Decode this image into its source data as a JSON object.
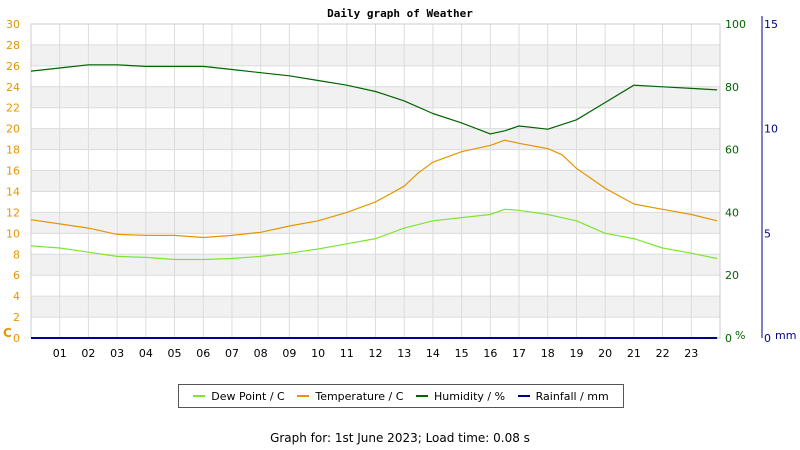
{
  "chart_data": {
    "type": "line",
    "title": "Daily graph of Weather",
    "x_ticks": [
      "01",
      "02",
      "03",
      "04",
      "05",
      "06",
      "07",
      "08",
      "09",
      "10",
      "11",
      "12",
      "13",
      "14",
      "15",
      "16",
      "17",
      "18",
      "19",
      "20",
      "21",
      "22",
      "23"
    ],
    "xlim": [
      0,
      24
    ],
    "left_axis": {
      "unit": "C",
      "range": [
        0,
        30
      ],
      "ticks": [
        "0",
        "2",
        "4",
        "6",
        "8",
        "10",
        "12",
        "14",
        "16",
        "18",
        "20",
        "22",
        "24",
        "26",
        "28",
        "30"
      ],
      "color": "#e69500"
    },
    "right_axis_1": {
      "unit": "%",
      "range": [
        0,
        100
      ],
      "ticks": [
        "0",
        "20",
        "40",
        "60",
        "80",
        "100"
      ],
      "color": "#006400"
    },
    "right_axis_2": {
      "unit": "mm",
      "range": [
        0,
        15
      ],
      "ticks": [
        "0",
        "5",
        "10",
        "15"
      ],
      "color": "#00008b"
    },
    "series": [
      {
        "name": "Dew Point / C",
        "axis": "left",
        "color": "#7ee62e",
        "x": [
          0,
          1,
          2,
          3,
          4,
          5,
          6,
          7,
          8,
          9,
          10,
          11,
          12,
          13,
          14,
          15,
          16,
          16.5,
          17,
          18,
          19,
          20,
          21,
          22,
          23,
          23.9
        ],
        "y": [
          8.8,
          8.6,
          8.2,
          7.8,
          7.7,
          7.5,
          7.5,
          7.6,
          7.8,
          8.1,
          8.5,
          9.0,
          9.5,
          10.5,
          11.2,
          11.5,
          11.8,
          12.3,
          12.2,
          11.8,
          11.2,
          10.0,
          9.5,
          8.6,
          8.1,
          7.6
        ]
      },
      {
        "name": "Temperature / C",
        "axis": "left",
        "color": "#e69500",
        "x": [
          0,
          1,
          2,
          3,
          4,
          5,
          6,
          7,
          8,
          9,
          10,
          11,
          12,
          13,
          13.5,
          14,
          15,
          16,
          16.5,
          17,
          18,
          18.5,
          19,
          20,
          21,
          22,
          23,
          23.9
        ],
        "y": [
          11.3,
          10.9,
          10.5,
          9.9,
          9.8,
          9.8,
          9.6,
          9.8,
          10.1,
          10.7,
          11.2,
          12.0,
          13.0,
          14.5,
          15.8,
          16.8,
          17.8,
          18.4,
          18.9,
          18.6,
          18.1,
          17.5,
          16.2,
          14.3,
          12.8,
          12.3,
          11.8,
          11.2
        ]
      },
      {
        "name": "Humidity / %",
        "axis": "right_1",
        "color": "#006400",
        "x": [
          0,
          1,
          2,
          3,
          4,
          5,
          6,
          7,
          8,
          9,
          10,
          11,
          12,
          13,
          14,
          15,
          16,
          16.5,
          17,
          18,
          19,
          20,
          21,
          22,
          23,
          23.9
        ],
        "y": [
          85,
          86,
          87,
          87,
          86.5,
          86.5,
          86.5,
          85.5,
          84.5,
          83.5,
          82,
          80.5,
          78.5,
          75.5,
          71.5,
          68.5,
          65,
          66,
          67.5,
          66.5,
          69.5,
          75,
          80.5,
          80,
          79.5,
          79
        ]
      },
      {
        "name": "Rainfall / mm",
        "axis": "right_2",
        "color": "#00008b",
        "x": [
          0,
          23.9
        ],
        "y": [
          0,
          0
        ]
      }
    ],
    "grid": true
  },
  "legend": [
    {
      "label": "Dew Point / C",
      "color": "#7ee62e"
    },
    {
      "label": "Temperature / C",
      "color": "#e69500"
    },
    {
      "label": "Humidity / %",
      "color": "#006400"
    },
    {
      "label": "Rainfall / mm",
      "color": "#00008b"
    }
  ],
  "footer": "Graph for: 1st June 2023; Load time: 0.08 s"
}
